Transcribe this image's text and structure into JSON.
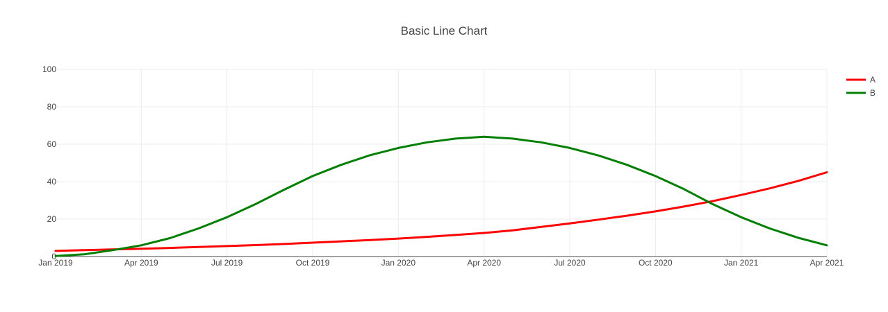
{
  "chart_data": {
    "type": "line",
    "title": "Basic Line Chart",
    "xlabel": "",
    "ylabel": "",
    "x": [
      "2019-01",
      "2019-02",
      "2019-03",
      "2019-04",
      "2019-05",
      "2019-06",
      "2019-07",
      "2019-08",
      "2019-09",
      "2019-10",
      "2019-11",
      "2019-12",
      "2020-01",
      "2020-02",
      "2020-03",
      "2020-04",
      "2020-05",
      "2020-06",
      "2020-07",
      "2020-08",
      "2020-09",
      "2020-10",
      "2020-11",
      "2020-12",
      "2021-01",
      "2021-02",
      "2021-03",
      "2021-04"
    ],
    "series": [
      {
        "name": "A",
        "color": "#ff0000",
        "values": [
          3.0,
          3.4,
          3.8,
          4.2,
          4.6,
          5.1,
          5.6,
          6.1,
          6.7,
          7.4,
          8.1,
          8.8,
          9.6,
          10.5,
          11.5,
          12.6,
          14.0,
          15.8,
          17.7,
          19.7,
          21.8,
          24.1,
          26.7,
          29.6,
          32.9,
          36.4,
          40.4,
          45.0
        ]
      },
      {
        "name": "B",
        "color": "#008000",
        "values": [
          0.3,
          1.2,
          3.4,
          6.0,
          9.8,
          15.0,
          21.0,
          28.0,
          35.7,
          43.0,
          49.0,
          54.1,
          58.0,
          61.0,
          63.0,
          64.0,
          63.0,
          61.0,
          58.0,
          54.0,
          49.0,
          43.0,
          36.0,
          28.0,
          21.0,
          15.0,
          10.0,
          6.0
        ]
      }
    ],
    "x_ticks": [
      "Jan 2019",
      "Apr 2019",
      "Jul 2019",
      "Oct 2019",
      "Jan 2020",
      "Apr 2020",
      "Jul 2020",
      "Oct 2020",
      "Jan 2021",
      "Apr 2021"
    ],
    "y_ticks": [
      "0",
      "20",
      "40",
      "60",
      "80",
      "100"
    ],
    "ylim": [
      0,
      100
    ],
    "xlim": [
      "2019-01",
      "2021-04"
    ],
    "grid": true,
    "legend_position": "top-right"
  }
}
